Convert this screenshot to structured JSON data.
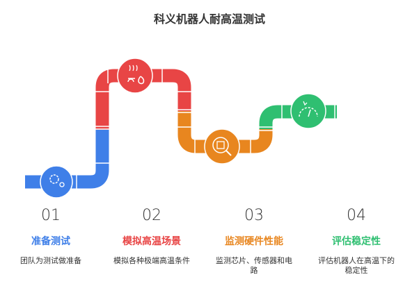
{
  "title": "科义机器人耐高温测试",
  "steps": [
    {
      "number": "01",
      "heading": "准备测试",
      "description": "团队为测试做准备",
      "color": "#3f7fe8",
      "icon": "gear-person-icon"
    },
    {
      "number": "02",
      "heading": "模拟高温场景",
      "description": "模拟各种极端高温条件",
      "color": "#e84545",
      "icon": "heat-fire-icon"
    },
    {
      "number": "03",
      "heading": "监测硬件性能",
      "description": "监测芯片、传感器和电路",
      "color": "#e8861f",
      "icon": "chip-magnifier-icon"
    },
    {
      "number": "04",
      "heading": "评估稳定性",
      "description": "评估机器人在高温下的稳定性",
      "color": "#2fbf71",
      "icon": "gauge-icon"
    }
  ]
}
